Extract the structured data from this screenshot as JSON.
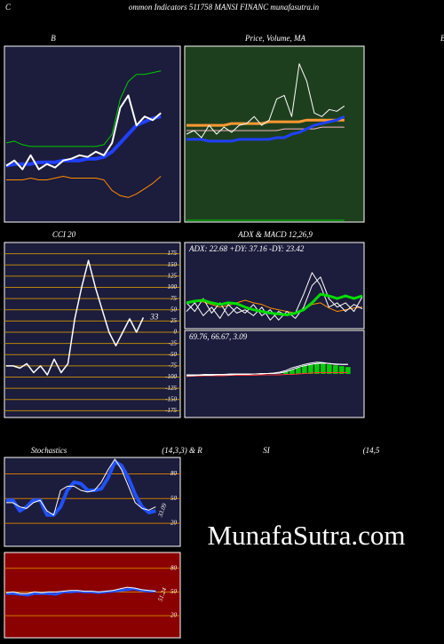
{
  "header": {
    "letter": "C",
    "title": "ommon  Indicators 511758  MANSI FINANC munafasutra.in",
    "right_letter": "B"
  },
  "watermark": "MunafaSutra.com",
  "chart_data": [
    {
      "type": "line",
      "title": "B",
      "ylim": [
        0,
        100
      ],
      "series": [
        {
          "color": "#00cc00",
          "width": 1,
          "values": [
            45,
            46,
            44,
            43,
            43,
            43,
            43,
            43,
            43,
            43,
            43,
            43,
            44,
            50,
            70,
            80,
            84,
            84,
            85,
            86
          ]
        },
        {
          "color": "#ff8c00",
          "width": 1,
          "values": [
            24,
            24,
            24,
            25,
            24,
            24,
            25,
            26,
            25,
            25,
            25,
            25,
            24,
            18,
            15,
            14,
            16,
            19,
            22,
            26
          ]
        },
        {
          "color": "#2040ff",
          "width": 4,
          "values": [
            32,
            33,
            33,
            33,
            34,
            34,
            34,
            35,
            35,
            35,
            36,
            36,
            37,
            40,
            45,
            50,
            55,
            57,
            59,
            60
          ]
        },
        {
          "color": "#ffffff",
          "width": 2,
          "values": [
            32,
            35,
            30,
            38,
            30,
            33,
            31,
            35,
            36,
            38,
            37,
            40,
            38,
            45,
            65,
            72,
            55,
            60,
            58,
            62
          ]
        }
      ]
    },
    {
      "type": "line",
      "title": "Price,  Volume,  MA",
      "ylim": [
        0,
        100
      ],
      "series": [
        {
          "color": "#00cc00",
          "width": 1,
          "values": [
            1,
            1,
            1,
            1,
            1,
            1,
            1,
            1,
            1,
            1,
            1,
            1,
            1,
            1,
            1,
            1,
            1,
            1,
            1,
            1,
            1,
            1
          ]
        },
        {
          "color": "#ff9933",
          "width": 3,
          "values": [
            55,
            55,
            55,
            55,
            55,
            55,
            56,
            56,
            56,
            56,
            56,
            57,
            57,
            57,
            57,
            57,
            58,
            58,
            58,
            58,
            58,
            58
          ]
        },
        {
          "color": "#ffb6c1",
          "width": 1,
          "values": [
            52,
            52,
            52,
            52,
            52,
            52,
            52,
            52,
            52,
            52,
            52,
            52,
            52,
            53,
            53,
            53,
            53,
            53,
            54,
            54,
            54,
            54
          ]
        },
        {
          "color": "#2040ff",
          "width": 3,
          "values": [
            47,
            47,
            47,
            46,
            46,
            46,
            46,
            47,
            47,
            47,
            47,
            47,
            48,
            48,
            50,
            51,
            53,
            55,
            56,
            57,
            58,
            60
          ]
        },
        {
          "color": "#ffffff",
          "width": 1,
          "values": [
            50,
            52,
            48,
            55,
            50,
            54,
            51,
            55,
            56,
            60,
            55,
            58,
            70,
            72,
            60,
            90,
            80,
            62,
            60,
            64,
            63,
            66
          ]
        }
      ]
    },
    {
      "type": "line",
      "title": "CCI 20",
      "ylim": [
        -190,
        200
      ],
      "grid_color": "#b8860b",
      "yticks": [
        175,
        150,
        125,
        100,
        75,
        50,
        25,
        0,
        -25,
        -50,
        -75,
        -100,
        -125,
        -150,
        -175
      ],
      "annotation": "33",
      "series": [
        {
          "color": "#ffffff",
          "width": 1.5,
          "values": [
            -75,
            -75,
            -80,
            -70,
            -90,
            -75,
            -95,
            -60,
            -90,
            -70,
            30,
            100,
            160,
            100,
            50,
            0,
            -30,
            0,
            30,
            0,
            33
          ]
        }
      ]
    },
    {
      "type": "line",
      "title": "ADX  & MACD 12,26,9",
      "label": "ADX: 22.68  +DY: 37.16  -DY: 23.42",
      "ylim": [
        0,
        100
      ],
      "series": [
        {
          "color": "#ff8c00",
          "width": 1,
          "values": [
            30,
            32,
            31,
            28,
            25,
            27,
            30,
            33,
            30,
            28,
            24,
            22,
            20,
            18,
            22,
            28,
            30,
            24,
            20,
            22,
            24,
            25
          ]
        },
        {
          "color": "#ffffff",
          "width": 1,
          "values": [
            20,
            30,
            15,
            25,
            12,
            28,
            18,
            22,
            15,
            25,
            10,
            20,
            15,
            18,
            40,
            65,
            50,
            25,
            30,
            20,
            28,
            23
          ]
        },
        {
          "color": "#ffffff",
          "width": 1,
          "values": [
            30,
            20,
            35,
            18,
            30,
            15,
            25,
            18,
            28,
            15,
            22,
            10,
            20,
            12,
            25,
            50,
            60,
            35,
            25,
            30,
            20,
            37
          ]
        },
        {
          "color": "#00dd00",
          "width": 3,
          "values": [
            30,
            32,
            33,
            30,
            28,
            30,
            29,
            25,
            22,
            20,
            18,
            17,
            16,
            18,
            22,
            30,
            40,
            38,
            35,
            38,
            35,
            38
          ]
        }
      ]
    },
    {
      "type": "line",
      "label": "69.76,  66.67,  3.09",
      "ylim": [
        -100,
        100
      ],
      "series": [
        {
          "type": "bar",
          "color": "#00cc00",
          "values": [
            0,
            0,
            0,
            0,
            0,
            0,
            0,
            0,
            0,
            0,
            0,
            0,
            0,
            0,
            0,
            0,
            5,
            10,
            14,
            20,
            22,
            24,
            24,
            22,
            20,
            18,
            16
          ]
        },
        {
          "color": "#ff3333",
          "width": 1,
          "values": [
            -6,
            -5,
            -5,
            -4,
            -4,
            -4,
            -4,
            -3,
            -3,
            -3,
            -3,
            -3,
            -2,
            -2,
            -2,
            -2,
            -1,
            -1,
            0,
            1,
            2,
            3,
            3,
            3,
            3,
            3,
            3
          ]
        },
        {
          "color": "#ffffff",
          "width": 1,
          "values": [
            -2,
            -2,
            -2,
            -1,
            -1,
            -1,
            -1,
            0,
            0,
            0,
            0,
            0,
            1,
            1,
            2,
            4,
            8,
            14,
            18,
            22,
            25,
            27,
            26,
            24,
            22,
            22,
            22
          ]
        },
        {
          "color": "#ffffff",
          "width": 1,
          "values": [
            -4,
            -4,
            -3,
            -3,
            -3,
            -2,
            -2,
            -2,
            -1,
            -1,
            -1,
            0,
            0,
            1,
            1,
            2,
            5,
            10,
            15,
            19,
            22,
            24,
            25,
            24,
            23,
            22,
            22
          ]
        }
      ]
    },
    {
      "type": "line",
      "title": "Stochastics",
      "subtitle": "(14,3,3) & R",
      "ylim": [
        -8,
        100
      ],
      "grid_color": "#cc7a00",
      "yticks": [
        80,
        50,
        20
      ],
      "annotation": "33.09",
      "series": [
        {
          "color": "#2050ff",
          "width": 4,
          "values": [
            48,
            48,
            35,
            40,
            48,
            48,
            30,
            30,
            40,
            60,
            70,
            68,
            60,
            60,
            62,
            75,
            95,
            90,
            75,
            55,
            40,
            33,
            35
          ]
        },
        {
          "color": "#ffffff",
          "width": 1,
          "values": [
            45,
            45,
            40,
            38,
            45,
            48,
            35,
            30,
            60,
            65,
            65,
            60,
            58,
            60,
            70,
            85,
            98,
            85,
            65,
            45,
            38,
            36,
            40
          ]
        }
      ]
    },
    {
      "type": "line",
      "title": "SI",
      "subtitle": "(14,5",
      "ylim": [
        -8,
        100
      ],
      "grid_color": "#cc7a00",
      "yticks": [
        80,
        50,
        20
      ],
      "annotation": "51.24",
      "series": [
        {
          "color": "#2050ff",
          "width": 3,
          "values": [
            48,
            48,
            47,
            46,
            48,
            48,
            48,
            47,
            50,
            50,
            51,
            50,
            50,
            49,
            50,
            51,
            52,
            53,
            54,
            52,
            51,
            51
          ]
        },
        {
          "color": "#ffffff",
          "width": 1,
          "values": [
            49,
            50,
            48,
            48,
            50,
            49,
            50,
            50,
            51,
            52,
            52,
            51,
            51,
            50,
            51,
            52,
            54,
            56,
            55,
            53,
            52,
            51
          ]
        }
      ]
    }
  ]
}
